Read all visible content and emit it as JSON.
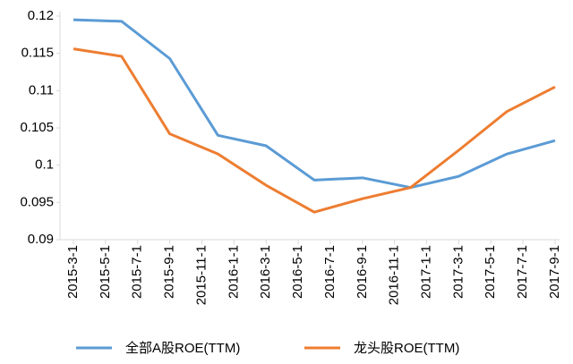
{
  "chart_data": {
    "type": "line",
    "x": [
      0,
      3,
      6,
      9,
      12,
      15,
      18,
      21,
      24,
      27,
      30
    ],
    "xlim": [
      0,
      30
    ],
    "xticks": [
      {
        "value": 0,
        "label": "2015-3-1"
      },
      {
        "value": 2,
        "label": "2015-5-1"
      },
      {
        "value": 4,
        "label": "2015-7-1"
      },
      {
        "value": 6,
        "label": "2015-9-1"
      },
      {
        "value": 8,
        "label": "2015-11-1"
      },
      {
        "value": 10,
        "label": "2016-1-1"
      },
      {
        "value": 12,
        "label": "2016-3-1"
      },
      {
        "value": 14,
        "label": "2016-5-1"
      },
      {
        "value": 16,
        "label": "2016-7-1"
      },
      {
        "value": 18,
        "label": "2016-9-1"
      },
      {
        "value": 20,
        "label": "2016-11-1"
      },
      {
        "value": 22,
        "label": "2017-1-1"
      },
      {
        "value": 24,
        "label": "2017-3-1"
      },
      {
        "value": 26,
        "label": "2017-5-1"
      },
      {
        "value": 28,
        "label": "2017-7-1"
      },
      {
        "value": 30,
        "label": "2017-9-1"
      }
    ],
    "ylim": [
      0.09,
      0.12
    ],
    "yticks": [
      0.09,
      0.095,
      0.1,
      0.105,
      0.11,
      0.115,
      0.12
    ],
    "series": [
      {
        "name": "全部A股ROE(TTM)",
        "color": "#5b9bd5",
        "values": [
          0.1195,
          0.1193,
          0.1143,
          0.104,
          0.1026,
          0.098,
          0.0983,
          0.097,
          0.0985,
          0.1015,
          0.1033
        ]
      },
      {
        "name": "龙头股ROE(TTM)",
        "color": "#ed7d31",
        "values": [
          0.1156,
          0.1146,
          0.1042,
          0.1015,
          0.0973,
          0.0937,
          0.0955,
          0.097,
          0.102,
          0.1072,
          0.1105
        ]
      }
    ]
  }
}
